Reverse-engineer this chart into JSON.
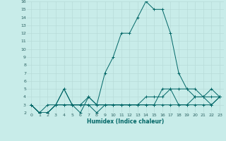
{
  "xlabel": "Humidex (Indice chaleur)",
  "background_color": "#c8ece9",
  "grid_color": "#b8dbd8",
  "line_color": "#006666",
  "xlim": [
    -0.5,
    23.5
  ],
  "ylim": [
    2,
    16
  ],
  "xticks": [
    0,
    1,
    2,
    3,
    4,
    5,
    6,
    7,
    8,
    9,
    10,
    11,
    12,
    13,
    14,
    15,
    16,
    17,
    18,
    19,
    20,
    21,
    22,
    23
  ],
  "yticks": [
    2,
    3,
    4,
    5,
    6,
    7,
    8,
    9,
    10,
    11,
    12,
    13,
    14,
    15,
    16
  ],
  "series": [
    [
      3,
      2,
      2,
      3,
      5,
      3,
      3,
      4,
      3,
      7,
      9,
      12,
      12,
      14,
      16,
      15,
      15,
      12,
      7,
      5,
      5,
      4,
      5,
      4
    ],
    [
      3,
      2,
      2,
      3,
      3,
      3,
      3,
      3,
      2,
      3,
      3,
      3,
      3,
      3,
      3,
      3,
      5,
      5,
      3,
      3,
      4,
      4,
      4,
      4
    ],
    [
      3,
      2,
      2,
      3,
      5,
      3,
      2,
      4,
      3,
      3,
      3,
      3,
      3,
      3,
      3,
      3,
      3,
      3,
      3,
      3,
      3,
      3,
      3,
      4
    ],
    [
      3,
      2,
      3,
      3,
      3,
      3,
      3,
      3,
      3,
      3,
      3,
      3,
      3,
      3,
      4,
      4,
      4,
      5,
      5,
      5,
      4,
      4,
      3,
      4
    ]
  ]
}
